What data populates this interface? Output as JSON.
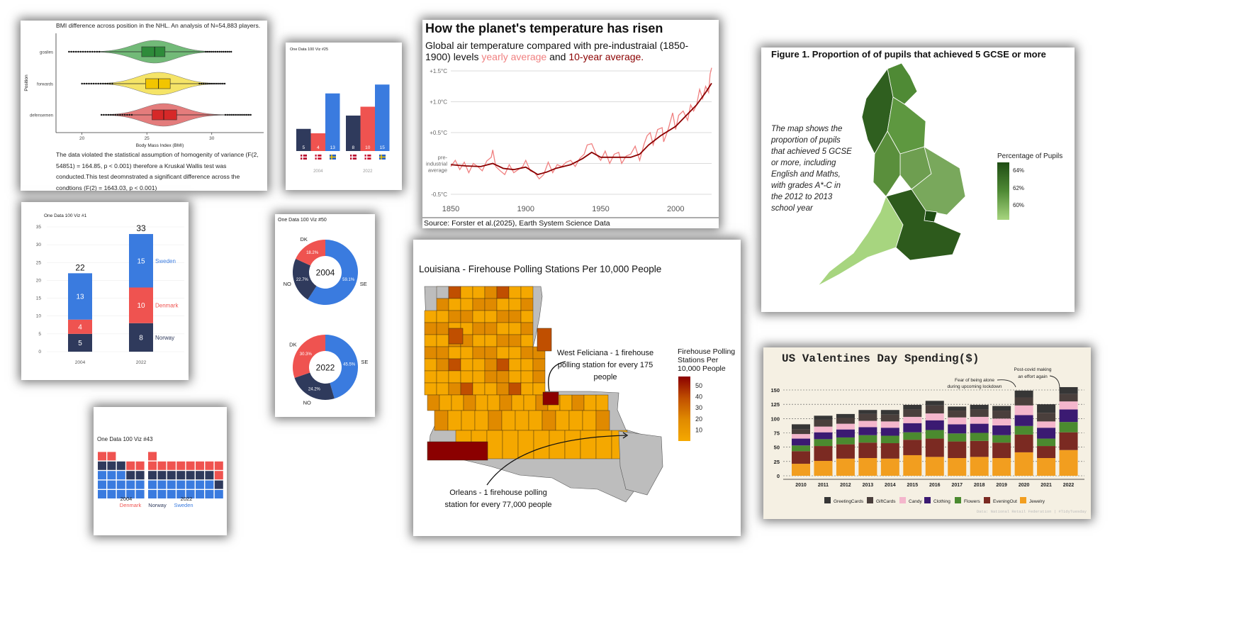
{
  "chart_data": [
    {
      "id": "nhl",
      "type": "violin",
      "title": "BMI difference across position in the NHL. An analysis of N=54,883 players.",
      "xlabel": "Body Mass Index (BMI)",
      "ylabel": "Position",
      "categories": [
        "goalies",
        "forwards",
        "defensemen"
      ],
      "medians": [
        25.6,
        25.9,
        26.3
      ],
      "q1": [
        24.6,
        24.9,
        25.4
      ],
      "q3": [
        26.4,
        26.8,
        27.3
      ],
      "min": [
        19.0,
        20.0,
        21.5
      ],
      "max": [
        31.5,
        31.0,
        33.0
      ],
      "xticks": [
        20,
        25,
        30
      ],
      "xlim": [
        18,
        34
      ],
      "colors": [
        "#5aae61",
        "#f4e04d",
        "#e06666"
      ],
      "box_colors": [
        "#2e8b3a",
        "#f2c500",
        "#d62828"
      ],
      "note": "The data violated the statistical assumption of homogenity of variance (F(2, 54851) = 164.85, p < 0.001) therefore a Kruskal Wallis test was conducted.This test deomnstrated a significant difference across the condtions (F(2) = 1643.03, p < 0.001)"
    },
    {
      "id": "viz25",
      "type": "bar",
      "title": "One Data 100 Viz #25",
      "groups": [
        "2004",
        "2022"
      ],
      "series": [
        {
          "name": "Norway",
          "values": [
            5,
            8
          ],
          "color": "#2f3a5c"
        },
        {
          "name": "Denmark",
          "values": [
            4,
            10
          ],
          "color": "#ef5350"
        },
        {
          "name": "Sweden",
          "values": [
            13,
            15
          ],
          "color": "#3a7bdf"
        }
      ]
    },
    {
      "id": "temp",
      "type": "line",
      "title": "How the planet's temperature has risen",
      "subtitle_start": "Global air temperature compared with pre-industraial (1850-1900) levels",
      "subtitle_yearly": "yearly average",
      "subtitle_and": "and",
      "subtitle_decadal": "10-year average.",
      "source": "Source: Forster et al.(2025), Earth System Science Data",
      "yticks": [
        "+1.5°C",
        "+1.0°C",
        "+0.5°C",
        "pre-",
        "industrial",
        "average",
        "-0.5°C"
      ],
      "y_values": [
        1.5,
        1.0,
        0.5,
        0,
        -0.5
      ],
      "xticks": [
        1850,
        1900,
        1950,
        2000
      ],
      "xlim": [
        1850,
        2024
      ],
      "ylim": [
        -0.5,
        1.5
      ],
      "yearly_color": "#f08080",
      "decadal_color": "#8b0000",
      "yearly_points": [
        [
          1850,
          -0.05
        ],
        [
          1853,
          0.05
        ],
        [
          1856,
          -0.1
        ],
        [
          1859,
          0.02
        ],
        [
          1862,
          -0.15
        ],
        [
          1865,
          0.0
        ],
        [
          1868,
          -0.05
        ],
        [
          1871,
          -0.12
        ],
        [
          1874,
          0.04
        ],
        [
          1877,
          0.1
        ],
        [
          1878,
          0.22
        ],
        [
          1880,
          -0.05
        ],
        [
          1883,
          -0.12
        ],
        [
          1886,
          -0.18
        ],
        [
          1889,
          -0.02
        ],
        [
          1892,
          -0.15
        ],
        [
          1895,
          -0.1
        ],
        [
          1898,
          -0.05
        ],
        [
          1900,
          0.05
        ],
        [
          1903,
          -0.12
        ],
        [
          1906,
          -0.15
        ],
        [
          1909,
          -0.25
        ],
        [
          1912,
          -0.18
        ],
        [
          1915,
          0.02
        ],
        [
          1918,
          -0.15
        ],
        [
          1921,
          -0.02
        ],
        [
          1924,
          -0.05
        ],
        [
          1927,
          0.02
        ],
        [
          1930,
          0.05
        ],
        [
          1933,
          -0.05
        ],
        [
          1936,
          0.08
        ],
        [
          1939,
          0.15
        ],
        [
          1941,
          0.3
        ],
        [
          1944,
          0.32
        ],
        [
          1947,
          0.15
        ],
        [
          1950,
          0.05
        ],
        [
          1953,
          0.2
        ],
        [
          1956,
          0.0
        ],
        [
          1959,
          0.15
        ],
        [
          1962,
          0.18
        ],
        [
          1964,
          0.0
        ],
        [
          1967,
          0.12
        ],
        [
          1970,
          0.15
        ],
        [
          1973,
          0.28
        ],
        [
          1976,
          0.05
        ],
        [
          1979,
          0.32
        ],
        [
          1981,
          0.45
        ],
        [
          1983,
          0.5
        ],
        [
          1985,
          0.3
        ],
        [
          1988,
          0.55
        ],
        [
          1991,
          0.58
        ],
        [
          1992,
          0.35
        ],
        [
          1995,
          0.55
        ],
        [
          1998,
          0.82
        ],
        [
          2000,
          0.55
        ],
        [
          2002,
          0.78
        ],
        [
          2005,
          0.85
        ],
        [
          2008,
          0.7
        ],
        [
          2010,
          0.95
        ],
        [
          2012,
          0.85
        ],
        [
          2014,
          0.95
        ],
        [
          2016,
          1.2
        ],
        [
          2018,
          1.05
        ],
        [
          2020,
          1.25
        ],
        [
          2022,
          1.15
        ],
        [
          2023,
          1.45
        ],
        [
          2024,
          1.55
        ]
      ],
      "decadal_points": [
        [
          1850,
          -0.02
        ],
        [
          1860,
          -0.04
        ],
        [
          1870,
          -0.05
        ],
        [
          1878,
          0.0
        ],
        [
          1885,
          -0.08
        ],
        [
          1892,
          -0.1
        ],
        [
          1900,
          -0.06
        ],
        [
          1908,
          -0.18
        ],
        [
          1914,
          -0.14
        ],
        [
          1920,
          -0.08
        ],
        [
          1930,
          -0.02
        ],
        [
          1938,
          0.08
        ],
        [
          1944,
          0.18
        ],
        [
          1950,
          0.1
        ],
        [
          1960,
          0.1
        ],
        [
          1970,
          0.1
        ],
        [
          1976,
          0.15
        ],
        [
          1982,
          0.3
        ],
        [
          1990,
          0.45
        ],
        [
          2000,
          0.6
        ],
        [
          2008,
          0.8
        ],
        [
          2014,
          0.95
        ],
        [
          2020,
          1.15
        ],
        [
          2024,
          1.3
        ]
      ]
    },
    {
      "id": "gcse",
      "type": "map",
      "title": "Figure 1. Proportion of of pupils that achieved 5 GCSE or more",
      "caption": "The map shows the proportion of pupils that achieved 5 GCSE or more, including English and Maths, with grades A*-C in the 2012 to 2013 school year",
      "legend_title": "Percentage of Pupils",
      "legend_ticks": [
        "64%",
        "62%",
        "60%"
      ],
      "legend_colors": [
        "#1f4d14",
        "#4f8a35",
        "#a7d57f"
      ]
    },
    {
      "id": "viz1",
      "type": "stacked-bar",
      "title": "One Data 100 Viz #1",
      "categories": [
        "2004",
        "2022"
      ],
      "totals": [
        "22",
        "33"
      ],
      "series": [
        {
          "name": "Norway",
          "values": [
            5,
            8
          ],
          "color": "#2f3a5c"
        },
        {
          "name": "Denmark",
          "values": [
            4,
            10
          ],
          "color": "#ef5350"
        },
        {
          "name": "Sweden",
          "values": [
            13,
            15
          ],
          "color": "#3a7bdf"
        }
      ],
      "yticks": [
        0,
        5,
        10,
        15,
        20,
        25,
        30,
        35
      ],
      "ylim": [
        0,
        35
      ]
    },
    {
      "id": "viz50",
      "type": "pie",
      "title": "One Data 100 Viz #50",
      "charts": [
        {
          "center": "2004",
          "slices": [
            {
              "name": "SE",
              "value": 59.1,
              "color": "#3a7bdf"
            },
            {
              "name": "NO",
              "value": 22.7,
              "color": "#2f3a5c"
            },
            {
              "name": "DK",
              "value": 18.2,
              "color": "#ef5350"
            }
          ]
        },
        {
          "center": "2022",
          "slices": [
            {
              "name": "SE",
              "value": 45.5,
              "color": "#3a7bdf"
            },
            {
              "name": "NO",
              "value": 24.2,
              "color": "#2f3a5c"
            },
            {
              "name": "DK",
              "value": 30.3,
              "color": "#ef5350"
            }
          ]
        }
      ],
      "labels_2004": [
        "18.2%",
        "22.7%",
        "59.1%"
      ],
      "labels_2022": [
        "30.3%",
        "24.2%",
        "45.5%"
      ]
    },
    {
      "id": "louisiana",
      "type": "map",
      "title": "Louisiana - Firehouse Polling Stations Per 10,000 People",
      "legend_title": "Firehouse Polling Stations Per 10,000 People",
      "legend_ticks": [
        "50",
        "40",
        "30",
        "20",
        "10"
      ],
      "annotation_west": "West Feliciana - 1 firehouse polling station for every 175 people",
      "annotation_orleans": "Orleans - 1 firehouse polling station for every 77,000 people",
      "colors": [
        "#8b0000",
        "#c04f00",
        "#e08a00",
        "#f5a800",
        "#bdbdbd"
      ]
    },
    {
      "id": "viz43",
      "type": "waffle",
      "title": "One Data 100 Viz #43",
      "groups": [
        "2004",
        "2022"
      ],
      "legend": [
        "Denmark",
        "Norway",
        "Sweden"
      ],
      "counts_2004": {
        "Denmark": 4,
        "Norway": 5,
        "Sweden": 13
      },
      "counts_2022": {
        "Denmark": 10,
        "Norway": 8,
        "Sweden": 15
      }
    },
    {
      "id": "valentine",
      "type": "stacked-bar",
      "title": "US Valentines Day Spending($)",
      "source": "Data: National Retail Federation | #TidyTuesday",
      "categories": [
        "2010",
        "2011",
        "2012",
        "2013",
        "2014",
        "2015",
        "2016",
        "2017",
        "2018",
        "2019",
        "2020",
        "2021",
        "2022"
      ],
      "yticks": [
        0,
        25,
        50,
        75,
        100,
        125,
        150
      ],
      "ylim": [
        0,
        160
      ],
      "annotation_1": "Fear of being alone during upcoming lockdown",
      "annotation_2": "Post-covid making an effort again",
      "series": [
        {
          "name": "Jewelry",
          "color": "#f29e1f",
          "values": [
            21,
            26,
            30,
            31,
            30,
            36,
            33,
            31,
            33,
            31,
            41,
            31,
            45
          ]
        },
        {
          "name": "EveningOut",
          "color": "#7b2a22",
          "values": [
            22,
            26,
            25,
            27,
            27,
            27,
            32,
            29,
            28,
            27,
            31,
            21,
            31
          ]
        },
        {
          "name": "Flowers",
          "color": "#4b8a2f",
          "values": [
            10,
            12,
            12,
            13,
            13,
            13,
            15,
            14,
            14,
            13,
            15,
            13,
            18
          ]
        },
        {
          "name": "Clothing",
          "color": "#3b1a72",
          "values": [
            12,
            12,
            14,
            14,
            14,
            16,
            17,
            16,
            16,
            17,
            19,
            19,
            22
          ]
        },
        {
          "name": "Candy",
          "color": "#f4b6cc",
          "values": [
            8,
            10,
            10,
            11,
            11,
            11,
            12,
            12,
            12,
            12,
            17,
            11,
            14
          ]
        },
        {
          "name": "GiftCards",
          "color": "#4a3f3c",
          "values": [
            8,
            12,
            10,
            12,
            12,
            13,
            14,
            12,
            13,
            14,
            14,
            15,
            13
          ]
        },
        {
          "name": "GreetingCards",
          "color": "#363636",
          "values": [
            9,
            7,
            7,
            7,
            8,
            8,
            8,
            7,
            8,
            8,
            12,
            15,
            12
          ]
        }
      ]
    }
  ]
}
